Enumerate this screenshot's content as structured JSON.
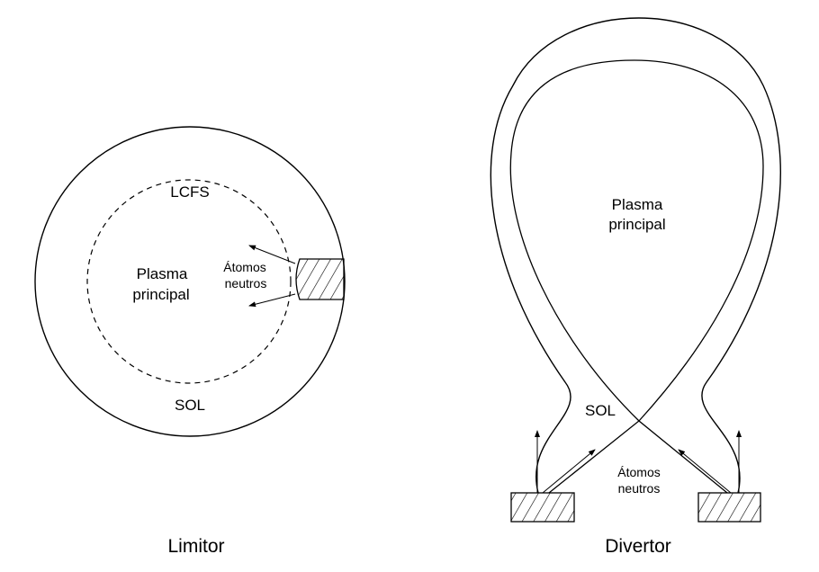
{
  "limiter": {
    "caption": "Limitor",
    "lcfs_label": "LCFS",
    "plasma_line1": "Plasma",
    "plasma_line2": "principal",
    "neutral_line1": "Átomos",
    "neutral_line2": "neutros",
    "sol_label": "SOL"
  },
  "divertor": {
    "caption": "Divertor",
    "plasma_line1": "Plasma",
    "plasma_line2": "principal",
    "sol_label": "SOL",
    "neutral_line1": "Átomos",
    "neutral_line2": "neutros"
  },
  "colors": {
    "line": "#000000",
    "background": "#ffffff"
  }
}
